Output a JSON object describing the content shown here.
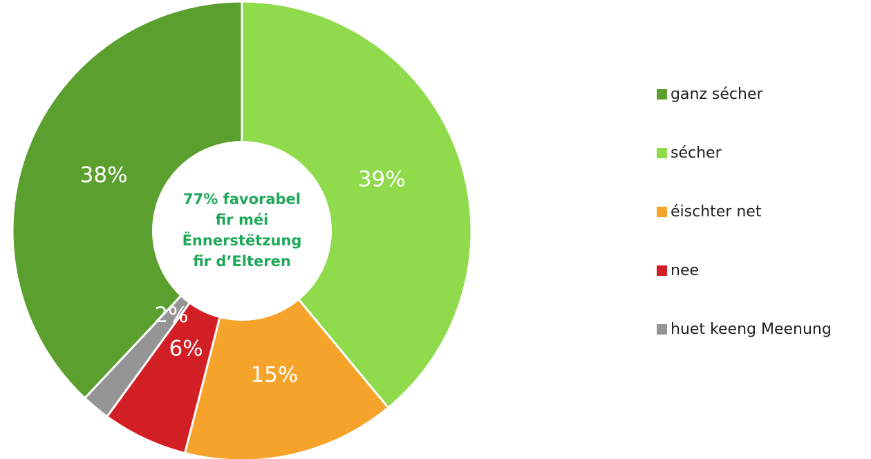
{
  "chart_data": {
    "type": "donut",
    "categories": [
      "ganz sécher",
      "sécher",
      "éischter net",
      "nee",
      "huet keeng Meenung"
    ],
    "values": [
      38,
      39,
      15,
      6,
      2
    ],
    "value_labels": [
      "38%",
      "39%",
      "15%",
      "6%",
      "2%"
    ],
    "colors": [
      "#5b9f2e",
      "#8fdb4b",
      "#f5a32b",
      "#d21f26",
      "#959595"
    ],
    "center_text": [
      "77% favorabel",
      "fir méi",
      "Ënnerstëtzung",
      "fir d’Elteren"
    ],
    "center_text_color": "#1ea85a",
    "legend": "right"
  }
}
